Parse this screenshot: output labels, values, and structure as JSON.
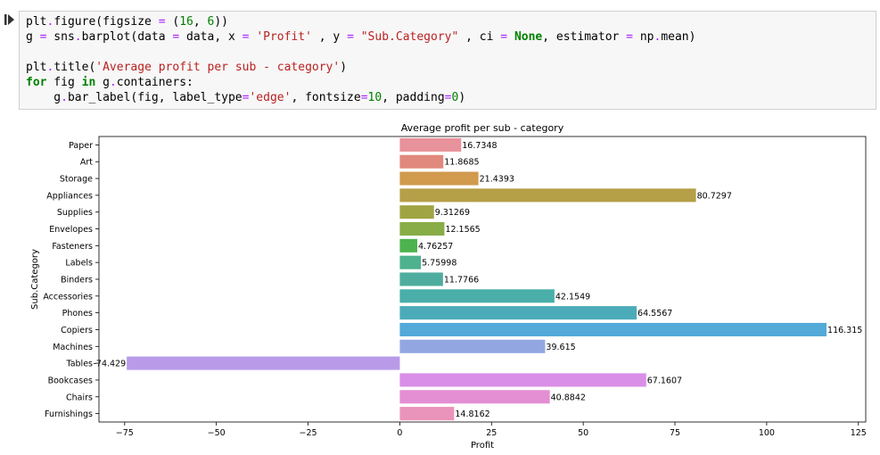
{
  "code": {
    "lines": [
      [
        {
          "t": "plt",
          "c": "plain"
        },
        {
          "t": ".",
          "c": "op"
        },
        {
          "t": "figure(figsize ",
          "c": "plain"
        },
        {
          "t": "=",
          "c": "op"
        },
        {
          "t": " (",
          "c": "plain"
        },
        {
          "t": "16",
          "c": "num"
        },
        {
          "t": ", ",
          "c": "plain"
        },
        {
          "t": "6",
          "c": "num"
        },
        {
          "t": "))",
          "c": "plain"
        }
      ],
      [
        {
          "t": "g ",
          "c": "plain"
        },
        {
          "t": "=",
          "c": "op"
        },
        {
          "t": " sns",
          "c": "plain"
        },
        {
          "t": ".",
          "c": "op"
        },
        {
          "t": "barplot(data ",
          "c": "plain"
        },
        {
          "t": "=",
          "c": "op"
        },
        {
          "t": " data, x ",
          "c": "plain"
        },
        {
          "t": "=",
          "c": "op"
        },
        {
          "t": " ",
          "c": "plain"
        },
        {
          "t": "'Profit'",
          "c": "str"
        },
        {
          "t": " , y ",
          "c": "plain"
        },
        {
          "t": "=",
          "c": "op"
        },
        {
          "t": " ",
          "c": "plain"
        },
        {
          "t": "\"Sub.Category\"",
          "c": "str"
        },
        {
          "t": " , ci ",
          "c": "plain"
        },
        {
          "t": "=",
          "c": "op"
        },
        {
          "t": " ",
          "c": "plain"
        },
        {
          "t": "None",
          "c": "kw"
        },
        {
          "t": ", estimator ",
          "c": "plain"
        },
        {
          "t": "=",
          "c": "op"
        },
        {
          "t": " np",
          "c": "plain"
        },
        {
          "t": ".",
          "c": "op"
        },
        {
          "t": "mean)",
          "c": "plain"
        }
      ],
      [],
      [
        {
          "t": "plt",
          "c": "plain"
        },
        {
          "t": ".",
          "c": "op"
        },
        {
          "t": "title(",
          "c": "plain"
        },
        {
          "t": "'Average profit per sub - category'",
          "c": "str"
        },
        {
          "t": ")",
          "c": "plain"
        }
      ],
      [
        {
          "t": "for",
          "c": "kw"
        },
        {
          "t": " fig ",
          "c": "plain"
        },
        {
          "t": "in",
          "c": "kw"
        },
        {
          "t": " g",
          "c": "plain"
        },
        {
          "t": ".",
          "c": "op"
        },
        {
          "t": "containers:",
          "c": "plain"
        }
      ],
      [
        {
          "t": "    g",
          "c": "plain"
        },
        {
          "t": ".",
          "c": "op"
        },
        {
          "t": "bar_label(fig, label_type",
          "c": "plain"
        },
        {
          "t": "=",
          "c": "op"
        },
        {
          "t": "'edge'",
          "c": "str"
        },
        {
          "t": ", fontsize",
          "c": "plain"
        },
        {
          "t": "=",
          "c": "op"
        },
        {
          "t": "10",
          "c": "num"
        },
        {
          "t": ", padding",
          "c": "plain"
        },
        {
          "t": "=",
          "c": "op"
        },
        {
          "t": "0",
          "c": "num"
        },
        {
          "t": ")",
          "c": "plain"
        }
      ]
    ]
  },
  "chart_data": {
    "type": "bar",
    "orientation": "horizontal",
    "title": "Average profit per sub - category",
    "xlabel": "Profit",
    "ylabel": "Sub.Category",
    "xlim": [
      -82,
      127
    ],
    "xticks": [
      -75,
      -50,
      -25,
      0,
      25,
      50,
      75,
      100,
      125
    ],
    "xtick_labels": [
      "−75",
      "−50",
      "−25",
      "0",
      "25",
      "50",
      "75",
      "100",
      "125"
    ],
    "grid": false,
    "categories": [
      "Paper",
      "Art",
      "Storage",
      "Appliances",
      "Supplies",
      "Envelopes",
      "Fasteners",
      "Labels",
      "Binders",
      "Accessories",
      "Phones",
      "Copiers",
      "Machines",
      "Tables",
      "Bookcases",
      "Chairs",
      "Furnishings"
    ],
    "values": [
      16.7348,
      11.8685,
      21.4393,
      80.7297,
      9.31269,
      12.1565,
      4.76257,
      5.75998,
      11.7766,
      42.1549,
      64.5567,
      116.315,
      39.615,
      -74.429,
      67.1607,
      40.8842,
      14.8162
    ],
    "value_labels": [
      "16.7348",
      "11.8685",
      "21.4393",
      "80.7297",
      "9.31269",
      "12.1565",
      "4.76257",
      "5.75998",
      "11.7766",
      "42.1549",
      "64.5567",
      "116.315",
      "39.615",
      "-74.429",
      "67.1607",
      "40.8842",
      "14.8162"
    ],
    "colors": [
      "#e8929b",
      "#e0897c",
      "#d19a4d",
      "#b59f47",
      "#a0a443",
      "#88ac46",
      "#4cb34e",
      "#4db28d",
      "#4ead9e",
      "#4aaea9",
      "#4cabb9",
      "#53a9d8",
      "#92a7e2",
      "#b89ae9",
      "#d98ee7",
      "#e48ed4",
      "#ea94bb"
    ]
  }
}
